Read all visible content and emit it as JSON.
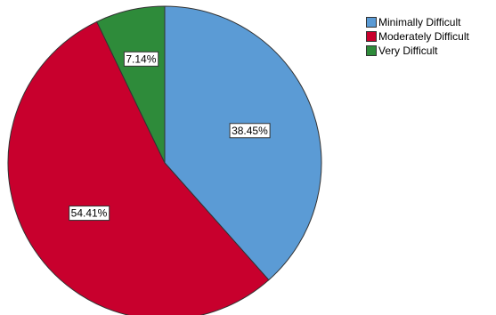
{
  "chart_data": {
    "type": "pie",
    "title": "",
    "legend_position": "top-right",
    "slices": [
      {
        "label": "Minimally Difficult",
        "value": 38.45,
        "display": "38.45%",
        "color": "#5b9bd5"
      },
      {
        "label": "Moderately Difficult",
        "value": 54.41,
        "display": "54.41%",
        "color": "#c8002d"
      },
      {
        "label": "Very Difficult",
        "value": 7.14,
        "display": "7.14%",
        "color": "#2e8b3a"
      }
    ]
  },
  "legend": {
    "items": [
      {
        "label": "Minimally Difficult",
        "color": "#5b9bd5"
      },
      {
        "label": "Moderately Difficult",
        "color": "#c8002d"
      },
      {
        "label": "Very Difficult",
        "color": "#2e8b3a"
      }
    ]
  }
}
